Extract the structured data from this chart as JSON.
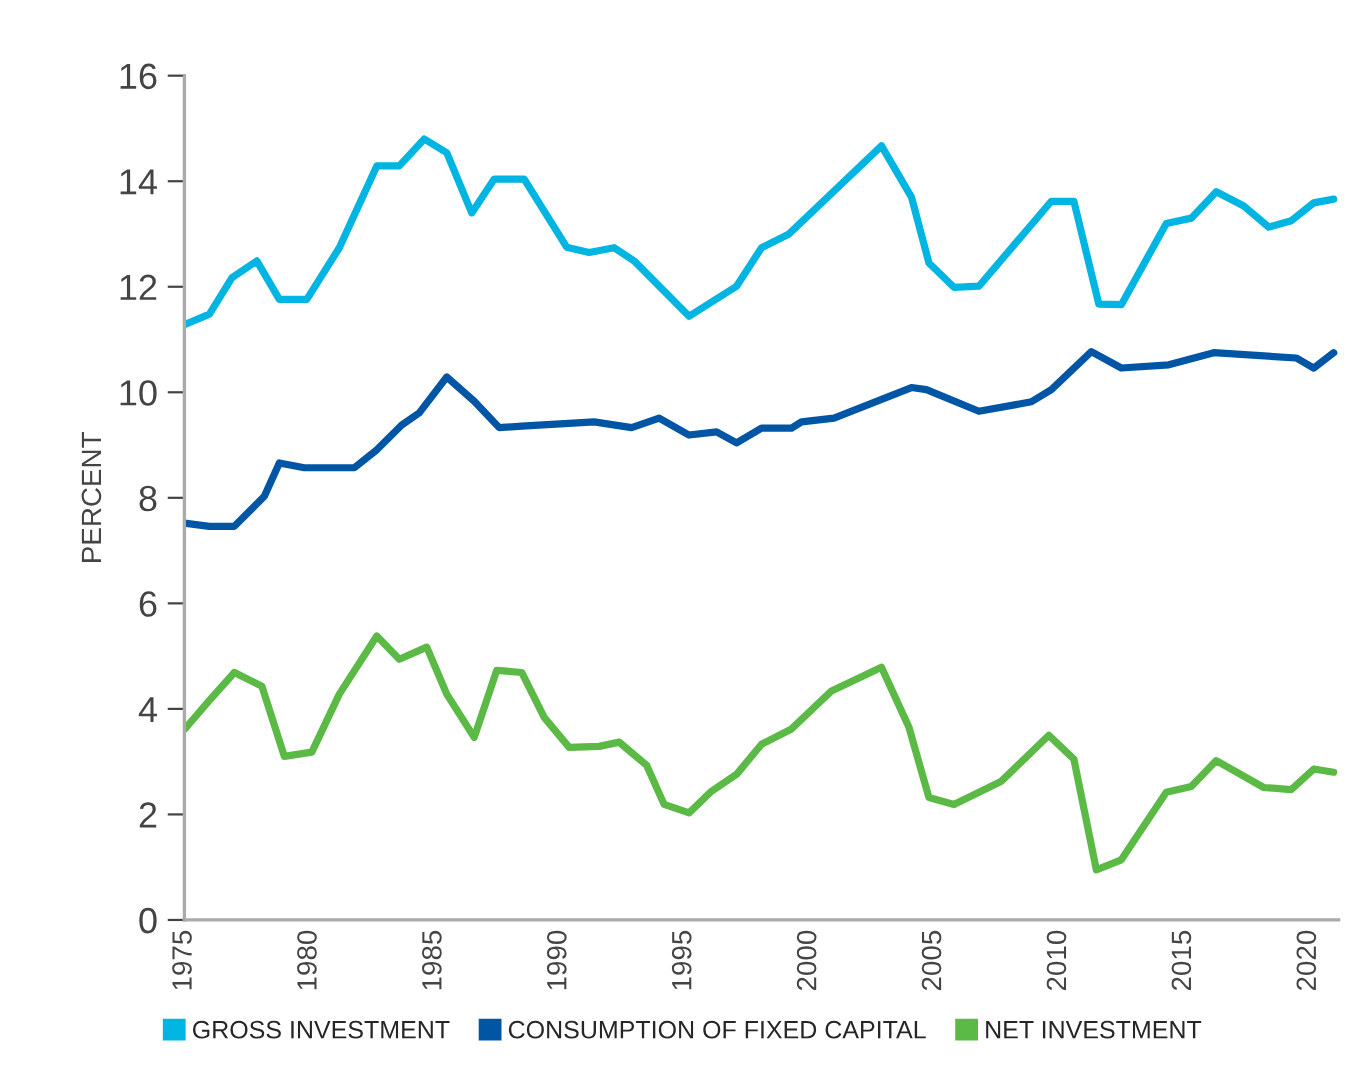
{
  "chart_data": {
    "type": "line",
    "ylabel": "PERCENT",
    "xlim": [
      1975,
      2021.2
    ],
    "xticks": [
      1975,
      1980,
      1985,
      1990,
      1995,
      2000,
      2005,
      2010,
      2015,
      2020
    ],
    "ylim": [
      0,
      16
    ],
    "yticks": [
      0,
      2,
      4,
      6,
      8,
      10,
      12,
      14,
      16
    ],
    "grid": false,
    "legend": "bottom",
    "line_style": "solid",
    "marker": "none",
    "series": [
      {
        "name": "GROSS INVESTMENT",
        "color": "#00b5e2",
        "x": [
          1975,
          1976,
          1976.9,
          1977.9,
          1978.8,
          1979.9,
          1981.2,
          1982.7,
          1983.6,
          1984.6,
          1985.5,
          1986.5,
          1987.4,
          1988.6,
          1990.3,
          1991.2,
          1992.2,
          1993,
          1995.2,
          1997.1,
          1998.1,
          1999.2,
          2002.9,
          2004.1,
          2004.8,
          2005.8,
          2006.8,
          2009.7,
          2010.6,
          2011.6,
          2012.5,
          2014.3,
          2015.3,
          2016.3,
          2017.4,
          2018.4,
          2019.3,
          2020.2,
          2021.0
        ],
        "values": [
          11.28,
          11.48,
          12.17,
          12.49,
          11.76,
          11.76,
          12.74,
          14.29,
          14.29,
          14.8,
          14.54,
          13.4,
          14.04,
          14.04,
          12.75,
          12.65,
          12.74,
          12.49,
          11.44,
          12.01,
          12.74,
          13.0,
          14.67,
          13.7,
          12.45,
          11.99,
          12.01,
          13.62,
          13.62,
          11.67,
          11.66,
          13.2,
          13.3,
          13.8,
          13.53,
          13.13,
          13.25,
          13.59,
          13.66
        ]
      },
      {
        "name": "CONSUMPTION OF FIXED CAPITAL",
        "color": "#0055a5",
        "x": [
          1975,
          1976,
          1977,
          1978.2,
          1978.8,
          1979.8,
          1981.8,
          1982.7,
          1983.7,
          1984.4,
          1985.5,
          1986.6,
          1987.6,
          1988.5,
          1991.4,
          1992.9,
          1994.0,
          1995.2,
          1996.3,
          1997.1,
          1998.1,
          1999.3,
          1999.7,
          2001.0,
          2004.1,
          2004.7,
          2006.8,
          2008.9,
          2009.7,
          2011.3,
          2012.5,
          2014.4,
          2016.2,
          2019.5,
          2020.2,
          2021.0
        ],
        "values": [
          7.52,
          7.46,
          7.46,
          8.03,
          8.66,
          8.57,
          8.57,
          8.91,
          9.38,
          9.61,
          10.29,
          9.83,
          9.33,
          9.36,
          9.44,
          9.33,
          9.51,
          9.19,
          9.25,
          9.04,
          9.32,
          9.32,
          9.44,
          9.51,
          10.09,
          10.05,
          9.64,
          9.82,
          10.05,
          10.77,
          10.46,
          10.52,
          10.75,
          10.65,
          10.46,
          10.75
        ]
      },
      {
        "name": "NET INVESTMENT",
        "color": "#5bb946",
        "x": [
          1975,
          1976,
          1977,
          1978.1,
          1979.0,
          1980.1,
          1981.2,
          1982.7,
          1983.6,
          1984.7,
          1985.5,
          1986.6,
          1987.5,
          1988.5,
          1989.4,
          1990.4,
          1991.6,
          1992.4,
          1993.5,
          1994.2,
          1995.2,
          1996.1,
          1997.1,
          1998.1,
          1999.3,
          2000.9,
          2002.9,
          2004.0,
          2004.8,
          2005.8,
          2007.7,
          2009.6,
          2010.6,
          2011.5,
          2012.5,
          2014.3,
          2015.3,
          2016.3,
          2018.2,
          2019.3,
          2020.2,
          2021.0
        ],
        "values": [
          3.61,
          4.16,
          4.69,
          4.43,
          3.1,
          3.18,
          4.28,
          5.38,
          4.94,
          5.17,
          4.28,
          3.46,
          4.73,
          4.69,
          3.84,
          3.27,
          3.29,
          3.37,
          2.93,
          2.19,
          2.03,
          2.44,
          2.76,
          3.33,
          3.62,
          4.34,
          4.79,
          3.65,
          2.32,
          2.19,
          2.63,
          3.5,
          3.05,
          0.95,
          1.14,
          2.42,
          2.53,
          3.02,
          2.51,
          2.47,
          2.86,
          2.8
        ]
      }
    ]
  }
}
